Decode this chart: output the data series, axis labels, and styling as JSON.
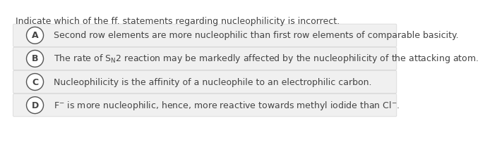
{
  "title": "Indicate which of the ff. statements regarding nucleophilicity is incorrect.",
  "title_fontsize": 9.0,
  "text_color": "#444444",
  "bg_color": "#ffffff",
  "option_bg_color": "#f0f0f0",
  "option_edge_color": "#d8d8d8",
  "circle_edge_color": "#555555",
  "circle_face_color": "#ffffff",
  "label_fontsize": 9.0,
  "text_fontsize": 9.0,
  "options": [
    {
      "label": "A",
      "line1": "Second row elements are more nucleophilic than first row elements of comparable basicity.",
      "use_math": false
    },
    {
      "label": "B",
      "line1": "The rate of S$_{\\mathrm{N}}$2 reaction may be markedly affected by the nucleophilicity of the attacking atom.",
      "use_math": true
    },
    {
      "label": "C",
      "line1": "Nucleophilicity is the affinity of a nucleophile to an electrophilic carbon.",
      "use_math": false
    },
    {
      "label": "D",
      "line1": "F$^{-}$ is more nucleophilic, hence, more reactive towards methyl iodide than Cl$^{-}$.",
      "use_math": true
    }
  ]
}
